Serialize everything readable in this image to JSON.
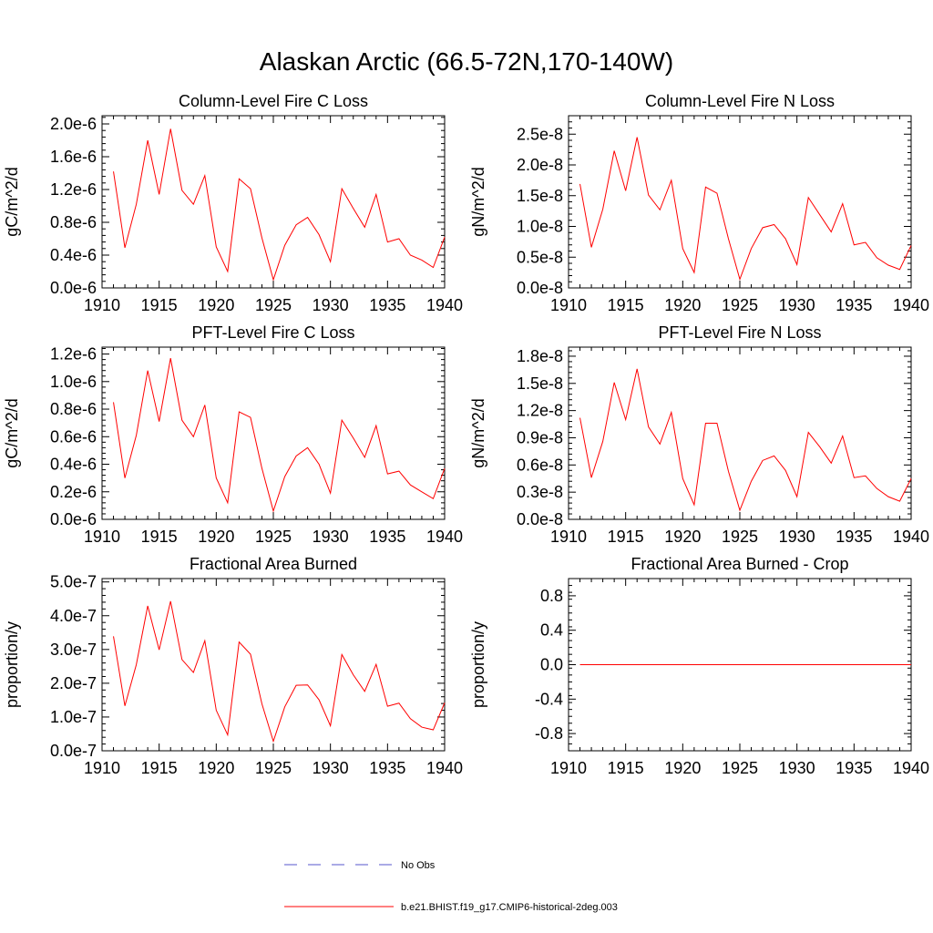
{
  "page_title": "Alaskan Arctic (66.5-72N,170-140W)",
  "colors": {
    "series": "#ff0000",
    "obs": "#5555cc",
    "axis": "#000000"
  },
  "legend": [
    {
      "label": "No Obs",
      "style": "dashed",
      "color": "#5555cc"
    },
    {
      "label": "b.e21.BHIST.f19_g17.CMIP6-historical-2deg.003",
      "style": "solid",
      "color": "#ff0000"
    }
  ],
  "chart_data": [
    {
      "type": "line",
      "title": "Column-Level Fire C Loss",
      "ylabel": "gC/m^2/d",
      "xlabel": "",
      "xlim": [
        1910,
        1940
      ],
      "ylim": [
        0.0,
        2.1e-06
      ],
      "x_ticks": [
        "1910",
        "1915",
        "1920",
        "1925",
        "1930",
        "1935",
        "1940"
      ],
      "y_ticks": [
        {
          "value": 0.0,
          "label": "0.0e-6"
        },
        {
          "value": 4e-07,
          "label": "0.4e-6"
        },
        {
          "value": 8e-07,
          "label": "0.8e-6"
        },
        {
          "value": 1.2e-06,
          "label": "1.2e-6"
        },
        {
          "value": 1.6e-06,
          "label": "1.6e-6"
        },
        {
          "value": 2e-06,
          "label": "2.0e-6"
        }
      ],
      "x": [
        1911,
        1912,
        1913,
        1914,
        1915,
        1916,
        1917,
        1918,
        1919,
        1920,
        1921,
        1922,
        1923,
        1924,
        1925,
        1926,
        1927,
        1928,
        1929,
        1930,
        1931,
        1932,
        1933,
        1934,
        1935,
        1936,
        1937,
        1938,
        1939,
        1940
      ],
      "series": [
        {
          "values": [
            1.42e-06,
            4.9e-07,
            1.02e-06,
            1.8e-06,
            1.14e-06,
            1.94e-06,
            1.19e-06,
            1.02e-06,
            1.37e-06,
            5e-07,
            2e-07,
            1.33e-06,
            1.21e-06,
            6.1e-07,
            1e-07,
            5.2e-07,
            7.7e-07,
            8.6e-07,
            6.5e-07,
            3.2e-07,
            1.21e-06,
            9.7e-07,
            7.4e-07,
            1.14e-06,
            5.6e-07,
            6e-07,
            4e-07,
            3.4e-07,
            2.5e-07,
            6.2e-07
          ]
        }
      ]
    },
    {
      "type": "line",
      "title": "Column-Level Fire N Loss",
      "ylabel": "gN/m^2/d",
      "xlabel": "",
      "xlim": [
        1910,
        1940
      ],
      "ylim": [
        0.0,
        2.8e-08
      ],
      "x_ticks": [
        "1910",
        "1915",
        "1920",
        "1925",
        "1930",
        "1935",
        "1940"
      ],
      "y_ticks": [
        {
          "value": 0.0,
          "label": "0.0e-8"
        },
        {
          "value": 5e-09,
          "label": "0.5e-8"
        },
        {
          "value": 1e-08,
          "label": "1.0e-8"
        },
        {
          "value": 1.5e-08,
          "label": "1.5e-8"
        },
        {
          "value": 2e-08,
          "label": "2.0e-8"
        },
        {
          "value": 2.5e-08,
          "label": "2.5e-8"
        }
      ],
      "x": [
        1911,
        1912,
        1913,
        1914,
        1915,
        1916,
        1917,
        1918,
        1919,
        1920,
        1921,
        1922,
        1923,
        1924,
        1925,
        1926,
        1927,
        1928,
        1929,
        1930,
        1931,
        1932,
        1933,
        1934,
        1935,
        1936,
        1937,
        1938,
        1939,
        1940
      ],
      "series": [
        {
          "values": [
            1.69e-08,
            6.6e-09,
            1.28e-08,
            2.23e-08,
            1.58e-08,
            2.45e-08,
            1.51e-08,
            1.27e-08,
            1.75e-08,
            6.4e-09,
            2.5e-09,
            1.64e-08,
            1.54e-08,
            8e-09,
            1.4e-09,
            6.4e-09,
            9.8e-09,
            1.03e-08,
            8e-09,
            3.8e-09,
            1.47e-08,
            1.19e-08,
            9.1e-09,
            1.37e-08,
            7e-09,
            7.4e-09,
            4.9e-09,
            3.7e-09,
            3e-09,
            6.9e-09
          ]
        }
      ]
    },
    {
      "type": "line",
      "title": "PFT-Level Fire C Loss",
      "ylabel": "gC/m^2/d",
      "xlabel": "",
      "xlim": [
        1910,
        1940
      ],
      "ylim": [
        0.0,
        1.25e-06
      ],
      "x_ticks": [
        "1910",
        "1915",
        "1920",
        "1925",
        "1930",
        "1935",
        "1940"
      ],
      "y_ticks": [
        {
          "value": 0.0,
          "label": "0.0e-6"
        },
        {
          "value": 2e-07,
          "label": "0.2e-6"
        },
        {
          "value": 4e-07,
          "label": "0.4e-6"
        },
        {
          "value": 6e-07,
          "label": "0.6e-6"
        },
        {
          "value": 8e-07,
          "label": "0.8e-6"
        },
        {
          "value": 1e-06,
          "label": "1.0e-6"
        },
        {
          "value": 1.2e-06,
          "label": "1.2e-6"
        }
      ],
      "x": [
        1911,
        1912,
        1913,
        1914,
        1915,
        1916,
        1917,
        1918,
        1919,
        1920,
        1921,
        1922,
        1923,
        1924,
        1925,
        1926,
        1927,
        1928,
        1929,
        1930,
        1931,
        1932,
        1933,
        1934,
        1935,
        1936,
        1937,
        1938,
        1939,
        1940
      ],
      "series": [
        {
          "values": [
            8.5e-07,
            3e-07,
            6.1e-07,
            1.08e-06,
            7.1e-07,
            1.17e-06,
            7.2e-07,
            6e-07,
            8.3e-07,
            3e-07,
            1.2e-07,
            7.8e-07,
            7.4e-07,
            3.7e-07,
            6e-08,
            3.1e-07,
            4.6e-07,
            5.2e-07,
            4e-07,
            1.9e-07,
            7.2e-07,
            5.9e-07,
            4.5e-07,
            6.8e-07,
            3.3e-07,
            3.5e-07,
            2.5e-07,
            2e-07,
            1.5e-07,
            3.7e-07
          ]
        }
      ]
    },
    {
      "type": "line",
      "title": "PFT-Level Fire N Loss",
      "ylabel": "gN/m^2/d",
      "xlabel": "",
      "xlim": [
        1910,
        1940
      ],
      "ylim": [
        0.0,
        1.9e-08
      ],
      "x_ticks": [
        "1910",
        "1915",
        "1920",
        "1925",
        "1930",
        "1935",
        "1940"
      ],
      "y_ticks": [
        {
          "value": 0.0,
          "label": "0.0e-8"
        },
        {
          "value": 3e-09,
          "label": "0.3e-8"
        },
        {
          "value": 6e-09,
          "label": "0.6e-8"
        },
        {
          "value": 9e-09,
          "label": "0.9e-8"
        },
        {
          "value": 1.2e-08,
          "label": "1.2e-8"
        },
        {
          "value": 1.5e-08,
          "label": "1.5e-8"
        },
        {
          "value": 1.8e-08,
          "label": "1.8e-8"
        }
      ],
      "x": [
        1911,
        1912,
        1913,
        1914,
        1915,
        1916,
        1917,
        1918,
        1919,
        1920,
        1921,
        1922,
        1923,
        1924,
        1925,
        1926,
        1927,
        1928,
        1929,
        1930,
        1931,
        1932,
        1933,
        1934,
        1935,
        1936,
        1937,
        1938,
        1939,
        1940
      ],
      "series": [
        {
          "values": [
            1.12e-08,
            4.6e-09,
            8.6e-09,
            1.51e-08,
            1.1e-08,
            1.66e-08,
            1.02e-08,
            8.3e-09,
            1.18e-08,
            4.5e-09,
            1.6e-09,
            1.06e-08,
            1.06e-08,
            5.3e-09,
            1e-09,
            4.2e-09,
            6.5e-09,
            7e-09,
            5.4e-09,
            2.5e-09,
            9.6e-09,
            8e-09,
            6.2e-09,
            9.2e-09,
            4.6e-09,
            4.8e-09,
            3.4e-09,
            2.5e-09,
            2e-09,
            4.5e-09
          ]
        }
      ]
    },
    {
      "type": "line",
      "title": "Fractional Area Burned",
      "ylabel": "proportion/y",
      "xlabel": "",
      "xlim": [
        1910,
        1940
      ],
      "ylim": [
        0.0,
        5.1e-07
      ],
      "x_ticks": [
        "1910",
        "1915",
        "1920",
        "1925",
        "1930",
        "1935",
        "1940"
      ],
      "y_ticks": [
        {
          "value": 0.0,
          "label": "0.0e-7"
        },
        {
          "value": 1e-07,
          "label": "1.0e-7"
        },
        {
          "value": 2e-07,
          "label": "2.0e-7"
        },
        {
          "value": 3e-07,
          "label": "3.0e-7"
        },
        {
          "value": 4e-07,
          "label": "4.0e-7"
        },
        {
          "value": 5e-07,
          "label": "5.0e-7"
        }
      ],
      "x": [
        1911,
        1912,
        1913,
        1914,
        1915,
        1916,
        1917,
        1918,
        1919,
        1920,
        1921,
        1922,
        1923,
        1924,
        1925,
        1926,
        1927,
        1928,
        1929,
        1930,
        1931,
        1932,
        1933,
        1934,
        1935,
        1936,
        1937,
        1938,
        1939,
        1940
      ],
      "series": [
        {
          "values": [
            3.39e-07,
            1.33e-07,
            2.55e-07,
            4.29e-07,
            2.99e-07,
            4.43e-07,
            2.7e-07,
            2.32e-07,
            3.26e-07,
            1.2e-07,
            4.7e-08,
            3.22e-07,
            2.86e-07,
            1.39e-07,
            2.8e-08,
            1.3e-07,
            1.94e-07,
            1.95e-07,
            1.51e-07,
            7.4e-08,
            2.85e-07,
            2.25e-07,
            1.76e-07,
            2.56e-07,
            1.32e-07,
            1.41e-07,
            9.5e-08,
            7e-08,
            6.2e-08,
            1.42e-07
          ]
        }
      ]
    },
    {
      "type": "line",
      "title": "Fractional Area Burned - Crop",
      "ylabel": "proportion/y",
      "xlabel": "",
      "xlim": [
        1910,
        1940
      ],
      "ylim": [
        -1.0,
        1.0
      ],
      "x_ticks": [
        "1910",
        "1915",
        "1920",
        "1925",
        "1930",
        "1935",
        "1940"
      ],
      "y_ticks": [
        {
          "value": -0.8,
          "label": "-0.8"
        },
        {
          "value": -0.4,
          "label": "-0.4"
        },
        {
          "value": 0.0,
          "label": "0.0"
        },
        {
          "value": 0.4,
          "label": "0.4"
        },
        {
          "value": 0.8,
          "label": "0.8"
        }
      ],
      "x": [
        1911,
        1912,
        1913,
        1914,
        1915,
        1916,
        1917,
        1918,
        1919,
        1920,
        1921,
        1922,
        1923,
        1924,
        1925,
        1926,
        1927,
        1928,
        1929,
        1930,
        1931,
        1932,
        1933,
        1934,
        1935,
        1936,
        1937,
        1938,
        1939,
        1940
      ],
      "series": [
        {
          "values": [
            0,
            0,
            0,
            0,
            0,
            0,
            0,
            0,
            0,
            0,
            0,
            0,
            0,
            0,
            0,
            0,
            0,
            0,
            0,
            0,
            0,
            0,
            0,
            0,
            0,
            0,
            0,
            0,
            0,
            0
          ]
        }
      ]
    }
  ]
}
